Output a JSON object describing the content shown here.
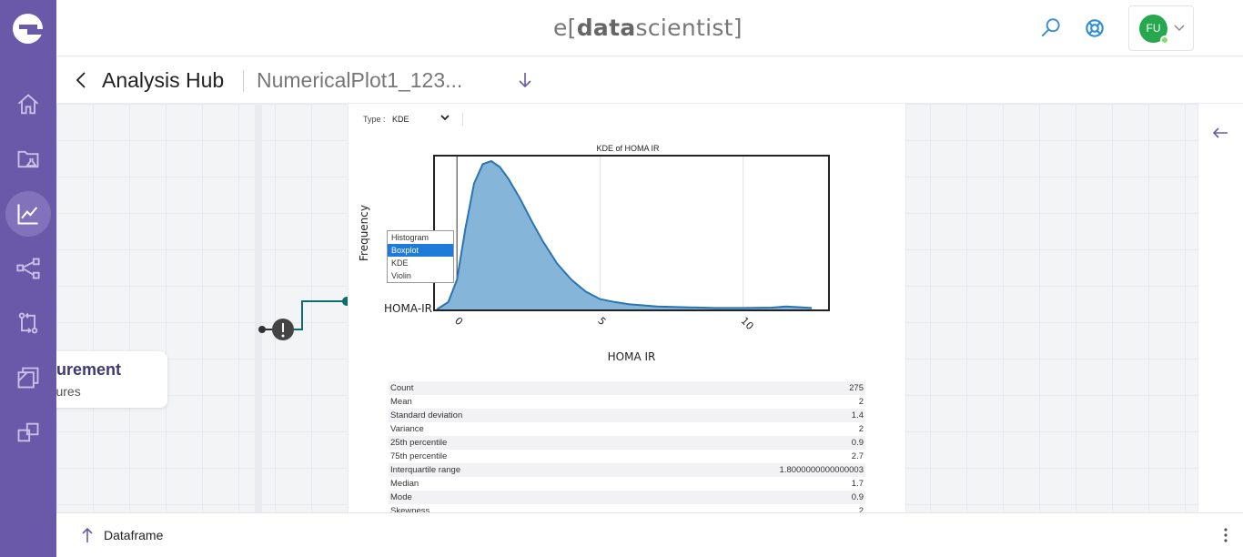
{
  "app": {
    "brand_prefix": "e[",
    "brand_bold": "data",
    "brand_suffix": "scientist]"
  },
  "user": {
    "initials": "FU"
  },
  "sidebar": {
    "items": [
      {
        "icon": "home-icon"
      },
      {
        "icon": "folder-flask-icon"
      },
      {
        "icon": "chart-line-icon",
        "active": true
      },
      {
        "icon": "share-nodes-icon"
      },
      {
        "icon": "git-compare-icon"
      },
      {
        "icon": "layers-icon"
      },
      {
        "icon": "windows-icon"
      }
    ]
  },
  "subbar": {
    "title": "Analysis Hub",
    "plot_name": "NumericalPlot1_123..."
  },
  "node": {
    "title": "asurement",
    "subtitle": "eatures"
  },
  "panel": {
    "type_label": "Type :",
    "type_value": "KDE",
    "dropdown_options": [
      "Histogram",
      "Boxplot",
      "KDE",
      "Violin"
    ],
    "dropdown_selected": "Boxplot"
  },
  "chart_data": {
    "type": "area",
    "title": "KDE of HOMA IR",
    "xlabel": "HOMA IR",
    "ylabel": "Frequency",
    "category_label": "HOMA-IR",
    "xlim": [
      -0.8,
      13
    ],
    "xticks": [
      "0",
      "5",
      "10"
    ],
    "xtick_values": [
      0,
      5,
      10
    ],
    "grid": true,
    "color": "#2b74b0",
    "fill": "#85b6da",
    "series": [
      {
        "x": [
          -0.7,
          -0.3,
          0,
          0.3,
          0.6,
          0.9,
          1.2,
          1.5,
          1.8,
          2.2,
          2.6,
          3.0,
          3.5,
          4.0,
          4.5,
          5.0,
          5.5,
          6.0,
          7.0,
          8.0,
          9.0,
          10.0,
          11.0,
          11.5,
          12.0,
          12.4
        ],
        "y": [
          0.0,
          0.05,
          0.2,
          0.55,
          0.85,
          0.98,
          1.0,
          0.96,
          0.88,
          0.75,
          0.6,
          0.46,
          0.31,
          0.2,
          0.12,
          0.07,
          0.05,
          0.035,
          0.02,
          0.015,
          0.01,
          0.01,
          0.012,
          0.02,
          0.015,
          0.01
        ]
      }
    ]
  },
  "stats": [
    {
      "label": "Count",
      "value": "275"
    },
    {
      "label": "Mean",
      "value": "2"
    },
    {
      "label": "Standard deviation",
      "value": "1.4"
    },
    {
      "label": "Variance",
      "value": "2"
    },
    {
      "label": "25th percentile",
      "value": "0.9"
    },
    {
      "label": "75th percentile",
      "value": "2.7"
    },
    {
      "label": "Interquartile range",
      "value": "1.8000000000000003"
    },
    {
      "label": "Median",
      "value": "1.7"
    },
    {
      "label": "Mode",
      "value": "0.9"
    },
    {
      "label": "Skewness",
      "value": "2"
    }
  ],
  "footer": {
    "dataframe_label": "Dataframe"
  }
}
